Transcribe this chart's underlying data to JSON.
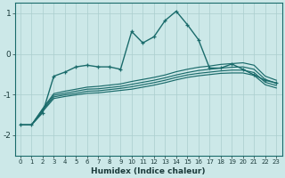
{
  "x": [
    0,
    1,
    2,
    3,
    4,
    5,
    6,
    7,
    8,
    9,
    10,
    11,
    12,
    13,
    14,
    15,
    16,
    17,
    18,
    19,
    20,
    21,
    22,
    23
  ],
  "line_main": [
    -1.75,
    -1.75,
    -1.45,
    -0.55,
    -0.45,
    -0.32,
    -0.28,
    -0.32,
    -0.32,
    -0.38,
    0.55,
    0.27,
    0.42,
    0.82,
    1.05,
    0.72,
    0.35,
    -0.35,
    -0.35,
    -0.25,
    -0.38,
    -0.52,
    -0.65,
    -0.72
  ],
  "line_r1": [
    -1.75,
    -1.75,
    -1.35,
    -0.98,
    -0.92,
    -0.87,
    -0.82,
    -0.8,
    -0.77,
    -0.74,
    -0.68,
    -0.63,
    -0.58,
    -0.52,
    -0.44,
    -0.38,
    -0.33,
    -0.3,
    -0.26,
    -0.24,
    -0.22,
    -0.28,
    -0.55,
    -0.65
  ],
  "line_r2": [
    -1.75,
    -1.75,
    -1.37,
    -1.02,
    -0.97,
    -0.92,
    -0.87,
    -0.86,
    -0.83,
    -0.8,
    -0.75,
    -0.7,
    -0.65,
    -0.59,
    -0.52,
    -0.46,
    -0.41,
    -0.38,
    -0.35,
    -0.33,
    -0.32,
    -0.38,
    -0.63,
    -0.72
  ],
  "line_r3": [
    -1.75,
    -1.75,
    -1.39,
    -1.06,
    -1.01,
    -0.97,
    -0.92,
    -0.91,
    -0.88,
    -0.85,
    -0.81,
    -0.76,
    -0.71,
    -0.65,
    -0.58,
    -0.52,
    -0.48,
    -0.45,
    -0.42,
    -0.4,
    -0.4,
    -0.46,
    -0.7,
    -0.78
  ],
  "line_r4": [
    -1.75,
    -1.75,
    -1.42,
    -1.1,
    -1.05,
    -1.01,
    -0.97,
    -0.96,
    -0.93,
    -0.9,
    -0.87,
    -0.82,
    -0.77,
    -0.71,
    -0.64,
    -0.58,
    -0.54,
    -0.51,
    -0.48,
    -0.47,
    -0.47,
    -0.53,
    -0.76,
    -0.84
  ],
  "bg_color": "#cce8e8",
  "grid_color": "#aacece",
  "line_color": "#1a6b6b",
  "xlabel": "Humidex (Indice chaleur)",
  "ylim": [
    -2.5,
    1.25
  ],
  "xlim": [
    -0.5,
    23.5
  ],
  "yticks": [
    -2,
    -1,
    0,
    1
  ],
  "xticks": [
    0,
    1,
    2,
    3,
    4,
    5,
    6,
    7,
    8,
    9,
    10,
    11,
    12,
    13,
    14,
    15,
    16,
    17,
    18,
    19,
    20,
    21,
    22,
    23
  ]
}
